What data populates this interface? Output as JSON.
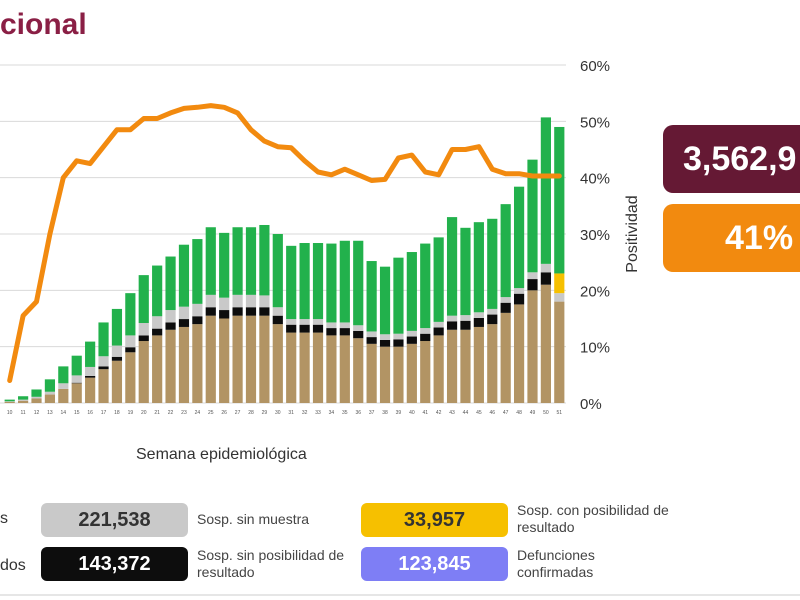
{
  "title": "cional",
  "x_axis_label": "Semana epidemiológica",
  "y_axis_label": "Positividad",
  "boxes": {
    "total": "3,562,9",
    "positividad": "41%"
  },
  "legend": {
    "left_cut_1": "s",
    "left_cut_2": "dos",
    "items": [
      {
        "value": "221,538",
        "label": "Sosp. sin muestra",
        "bg": "#c9c9c9",
        "fg": "#333333"
      },
      {
        "value": "143,372",
        "label": "Sosp. sin posibilidad de resultado",
        "bg": "#0d0d0d",
        "fg": "#ffffff"
      },
      {
        "value": "33,957",
        "label": "Sosp. con posibilidad de resultado",
        "bg": "#f6c000",
        "fg": "#333333"
      },
      {
        "value": "123,845",
        "label": "Defunciones confirmadas",
        "bg": "#7e7ef5",
        "fg": "#ffffff"
      }
    ]
  },
  "colors": {
    "confirmed_deaths": "#b29464",
    "sosp_sin_posibilidad": "#0d0d0d",
    "sosp_sin_muestra": "#c9c9c9",
    "sosp_con_posibilidad": "#f6c000",
    "green": "#22b14c",
    "positivity_line": "#f28a0f"
  },
  "chart_data": {
    "type": "bar",
    "y2label": "Positividad",
    "xlabel": "Semana epidemiológica",
    "y2lim": [
      0,
      60
    ],
    "y2ticks": [
      "0%",
      "10%",
      "20%",
      "30%",
      "40%",
      "50%",
      "60%"
    ],
    "categories": [
      "10",
      "11",
      "12",
      "13",
      "14",
      "15",
      "16",
      "17",
      "18",
      "19",
      "20",
      "21",
      "22",
      "23",
      "24",
      "25",
      "26",
      "27",
      "28",
      "29",
      "30",
      "31",
      "32",
      "33",
      "34",
      "35",
      "36",
      "37",
      "38",
      "39",
      "40",
      "41",
      "42",
      "43",
      "44",
      "45",
      "46",
      "47",
      "48",
      "49",
      "50",
      "51"
    ],
    "series": [
      {
        "values": [
          0.2,
          0.4,
          0.8,
          1.5,
          2.5,
          3.5,
          4.5,
          6,
          7.5,
          9,
          11,
          12,
          13,
          13.5,
          14,
          15.5,
          15,
          15.5,
          15.5,
          15.5,
          14,
          12.5,
          12.5,
          12.5,
          12,
          12,
          11.5,
          10.5,
          10,
          10,
          10.5,
          11,
          12,
          13,
          13,
          13.5,
          14,
          16,
          17.5,
          20,
          21,
          18
        ]
      },
      {
        "values": [
          0,
          0,
          0,
          0,
          0,
          0.1,
          0.3,
          0.5,
          0.7,
          0.9,
          1,
          1.2,
          1.3,
          1.4,
          1.4,
          1.5,
          1.5,
          1.5,
          1.5,
          1.5,
          1.5,
          1.4,
          1.4,
          1.4,
          1.3,
          1.3,
          1.3,
          1.2,
          1.2,
          1.3,
          1.3,
          1.3,
          1.4,
          1.5,
          1.6,
          1.6,
          1.7,
          1.8,
          1.9,
          2,
          2.2,
          0
        ]
      },
      {
        "values": [
          0.1,
          0.2,
          0.3,
          0.5,
          1,
          1.3,
          1.6,
          1.8,
          2,
          2.1,
          2.2,
          2.2,
          2.2,
          2.2,
          2.2,
          2.2,
          2.2,
          2.2,
          2.2,
          2.1,
          1.5,
          1,
          1,
          1,
          1,
          1,
          1,
          1,
          1,
          1,
          1,
          1,
          1,
          1,
          1,
          1,
          1,
          1,
          1,
          1.2,
          1.5,
          1.5
        ]
      },
      {
        "values": [
          0,
          0,
          0,
          0,
          0,
          0,
          0,
          0,
          0,
          0,
          0,
          0,
          0,
          0,
          0,
          0,
          0,
          0,
          0,
          0,
          0,
          0,
          0,
          0,
          0,
          0,
          0,
          0,
          0,
          0,
          0,
          0,
          0,
          0,
          0,
          0,
          0,
          0,
          0,
          0,
          0,
          3.5
        ]
      },
      {
        "values": [
          0.3,
          0.6,
          1.3,
          2.2,
          3,
          3.5,
          4.5,
          6,
          6.5,
          7.5,
          8.5,
          9,
          9.5,
          11,
          11.5,
          12,
          11.5,
          12,
          12,
          12.5,
          13,
          13,
          13.5,
          13.5,
          14,
          14.5,
          15,
          12.5,
          12,
          13.5,
          14,
          15,
          15,
          17.5,
          15.5,
          16,
          16,
          16.5,
          18,
          20,
          26,
          26
        ]
      }
    ],
    "line": {
      "values": [
        4,
        15.5,
        18,
        30,
        40,
        43,
        42.5,
        45.5,
        48.5,
        48.5,
        50.5,
        50.5,
        51.5,
        52.3,
        52.5,
        52.8,
        52.5,
        51.5,
        48.5,
        46.5,
        45.5,
        45.3,
        43,
        41,
        40.5,
        41.5,
        40.5,
        39.5,
        39.7,
        43.5,
        44,
        41,
        40.5,
        45,
        45,
        45.5,
        41.5,
        40.7,
        40.7,
        40.3,
        40.3,
        40.3
      ]
    }
  }
}
